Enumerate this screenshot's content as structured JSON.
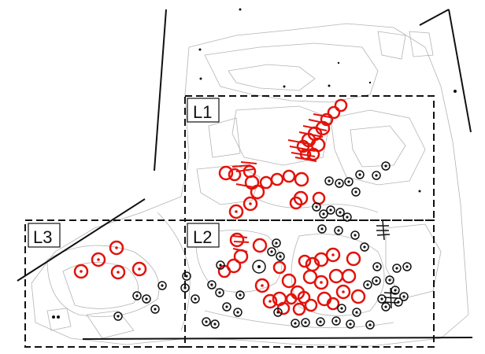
{
  "zones": [
    {
      "id": "L1",
      "label": "L1"
    },
    {
      "id": "L2",
      "label": "L2"
    },
    {
      "id": "L3",
      "label": "L3"
    }
  ],
  "colors": {
    "zone_border": "#111111",
    "red_marker": "#e3120b",
    "black_marker": "#111111",
    "plan_sketch": "#9a9a9a"
  }
}
